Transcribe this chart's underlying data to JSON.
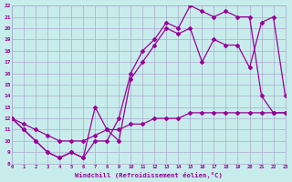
{
  "background_color": "#c8ecec",
  "grid_color": "#aaaacc",
  "line_color": "#990099",
  "xlabel": "Windchill (Refroidissement éolien,°C)",
  "xlim": [
    0,
    23
  ],
  "ylim": [
    8,
    22
  ],
  "xticks": [
    0,
    1,
    2,
    3,
    4,
    5,
    6,
    7,
    8,
    9,
    10,
    11,
    12,
    13,
    14,
    15,
    16,
    17,
    18,
    19,
    20,
    21,
    22,
    23
  ],
  "yticks": [
    8,
    9,
    10,
    11,
    12,
    13,
    14,
    15,
    16,
    17,
    18,
    19,
    20,
    21,
    22
  ],
  "line1_x": [
    0,
    1,
    2,
    3,
    4,
    5,
    6,
    7,
    8,
    9,
    10,
    11,
    12,
    13,
    14,
    15,
    16,
    17,
    18,
    19,
    20,
    21,
    22,
    23
  ],
  "line1_y": [
    12.0,
    11.5,
    11.0,
    10.5,
    10.0,
    10.0,
    10.0,
    10.5,
    11.0,
    11.0,
    11.5,
    11.5,
    12.0,
    12.0,
    12.0,
    12.5,
    12.5,
    12.5,
    12.5,
    12.5,
    12.5,
    12.5,
    12.5,
    12.5
  ],
  "line2_x": [
    0,
    1,
    2,
    3,
    4,
    5,
    6,
    7,
    8,
    9,
    10,
    11,
    12,
    13,
    14,
    15,
    16,
    17,
    18,
    19,
    20,
    21,
    22,
    23
  ],
  "line2_y": [
    12.0,
    11.0,
    10.0,
    9.0,
    8.5,
    9.0,
    8.5,
    13.0,
    11.0,
    10.0,
    15.5,
    17.0,
    18.5,
    20.0,
    19.5,
    20.0,
    17.0,
    19.0,
    18.5,
    18.5,
    16.5,
    20.5,
    21.0,
    14.0
  ],
  "line3_x": [
    0,
    1,
    2,
    3,
    4,
    5,
    6,
    7,
    8,
    9,
    10,
    11,
    12,
    13,
    14,
    15,
    16,
    17,
    18,
    19,
    20,
    21,
    22,
    23
  ],
  "line3_y": [
    12.0,
    11.0,
    10.0,
    9.0,
    8.5,
    9.0,
    8.5,
    10.0,
    10.0,
    12.0,
    16.0,
    18.0,
    19.0,
    20.5,
    20.0,
    22.0,
    21.5,
    21.0,
    21.5,
    21.0,
    21.0,
    14.0,
    12.5,
    12.5
  ]
}
